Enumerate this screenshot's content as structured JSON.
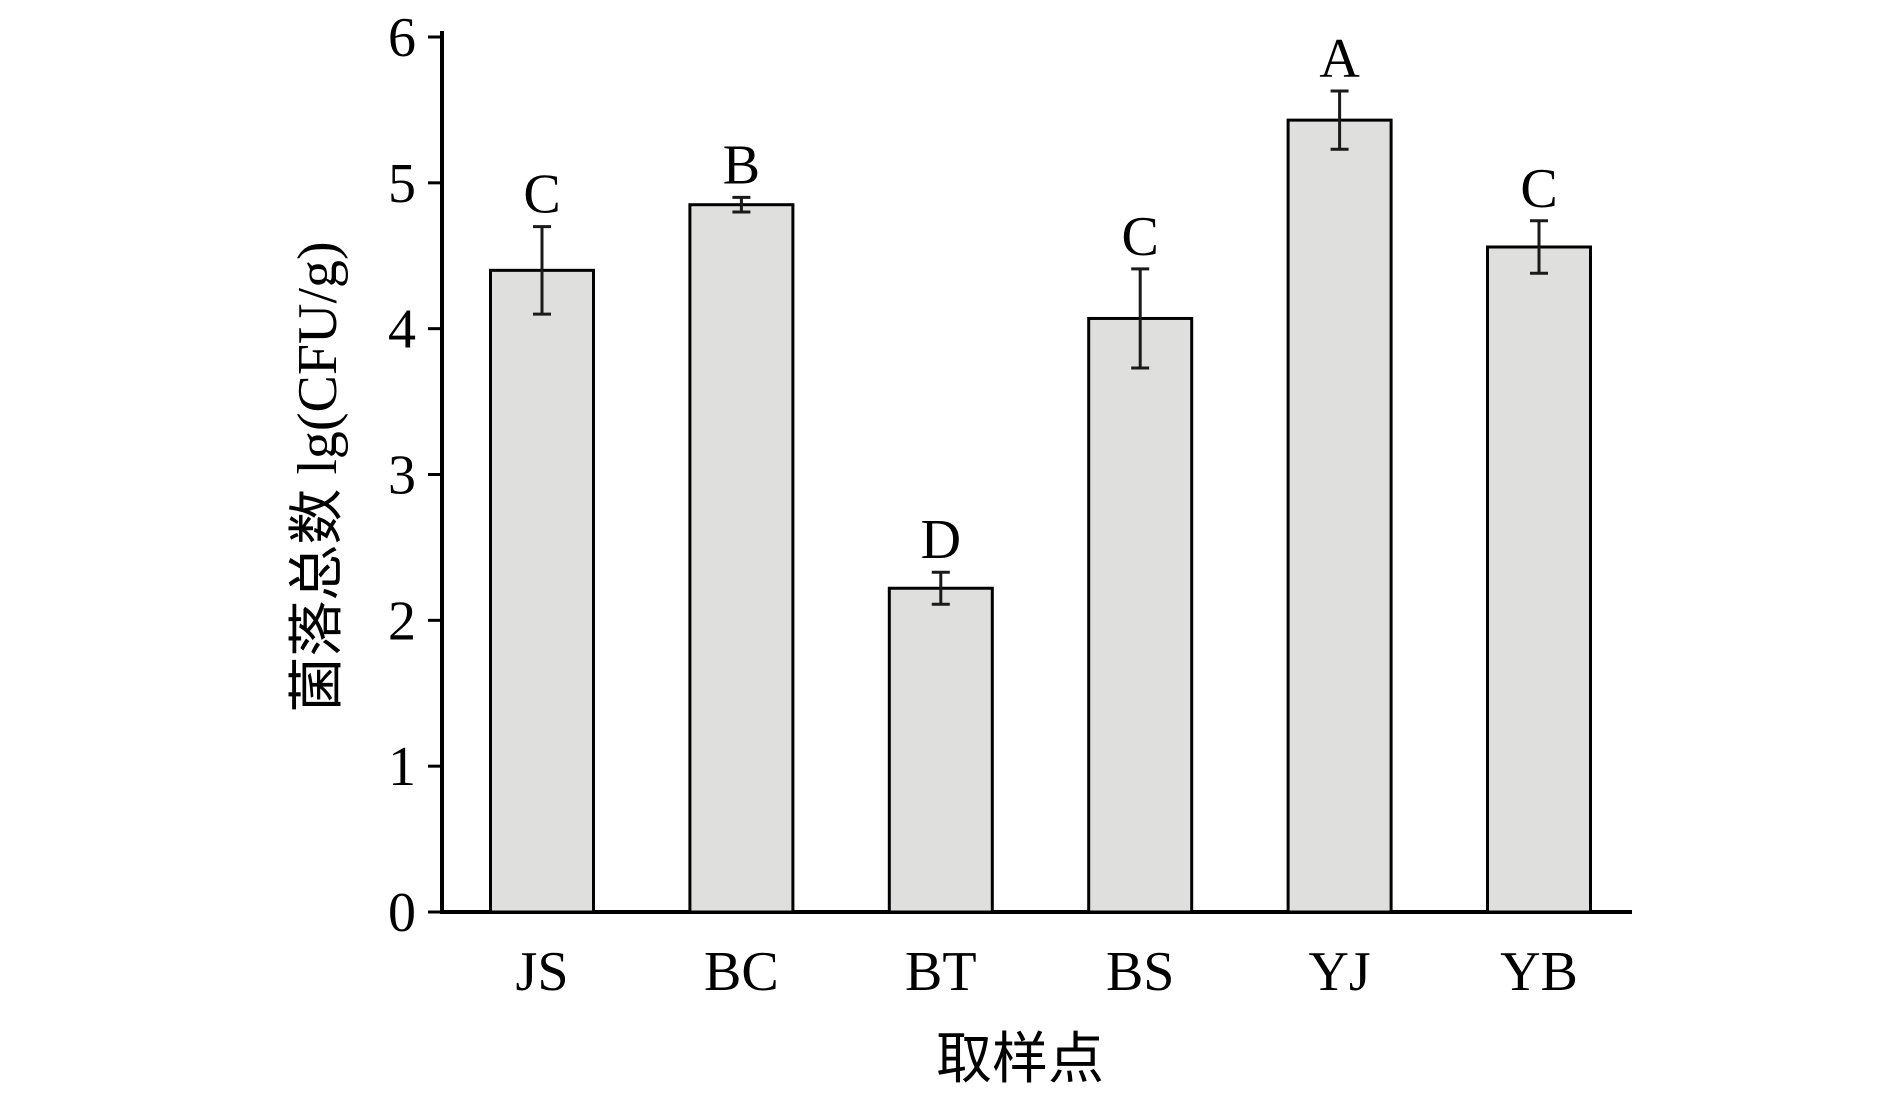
{
  "chart_data": {
    "type": "bar",
    "title": "",
    "xlabel": "取样点",
    "ylabel": "菌落总数 lg(CFU/g)",
    "categories": [
      "JS",
      "BC",
      "BT",
      "BS",
      "YJ",
      "YB"
    ],
    "values": [
      4.4,
      4.85,
      2.22,
      4.07,
      5.43,
      4.56
    ],
    "errors": [
      0.3,
      0.05,
      0.11,
      0.34,
      0.2,
      0.18
    ],
    "significance": [
      "C",
      "B",
      "D",
      "C",
      "A",
      "C"
    ],
    "ylim": [
      0,
      6
    ],
    "yticks": [
      0,
      1,
      2,
      3,
      4,
      5,
      6
    ],
    "grid": false,
    "colors": {
      "bar_fill": "#dfe0dd",
      "bar_stroke": "#000000",
      "axis": "#000000",
      "error_bar": "#1a1a1a"
    }
  }
}
